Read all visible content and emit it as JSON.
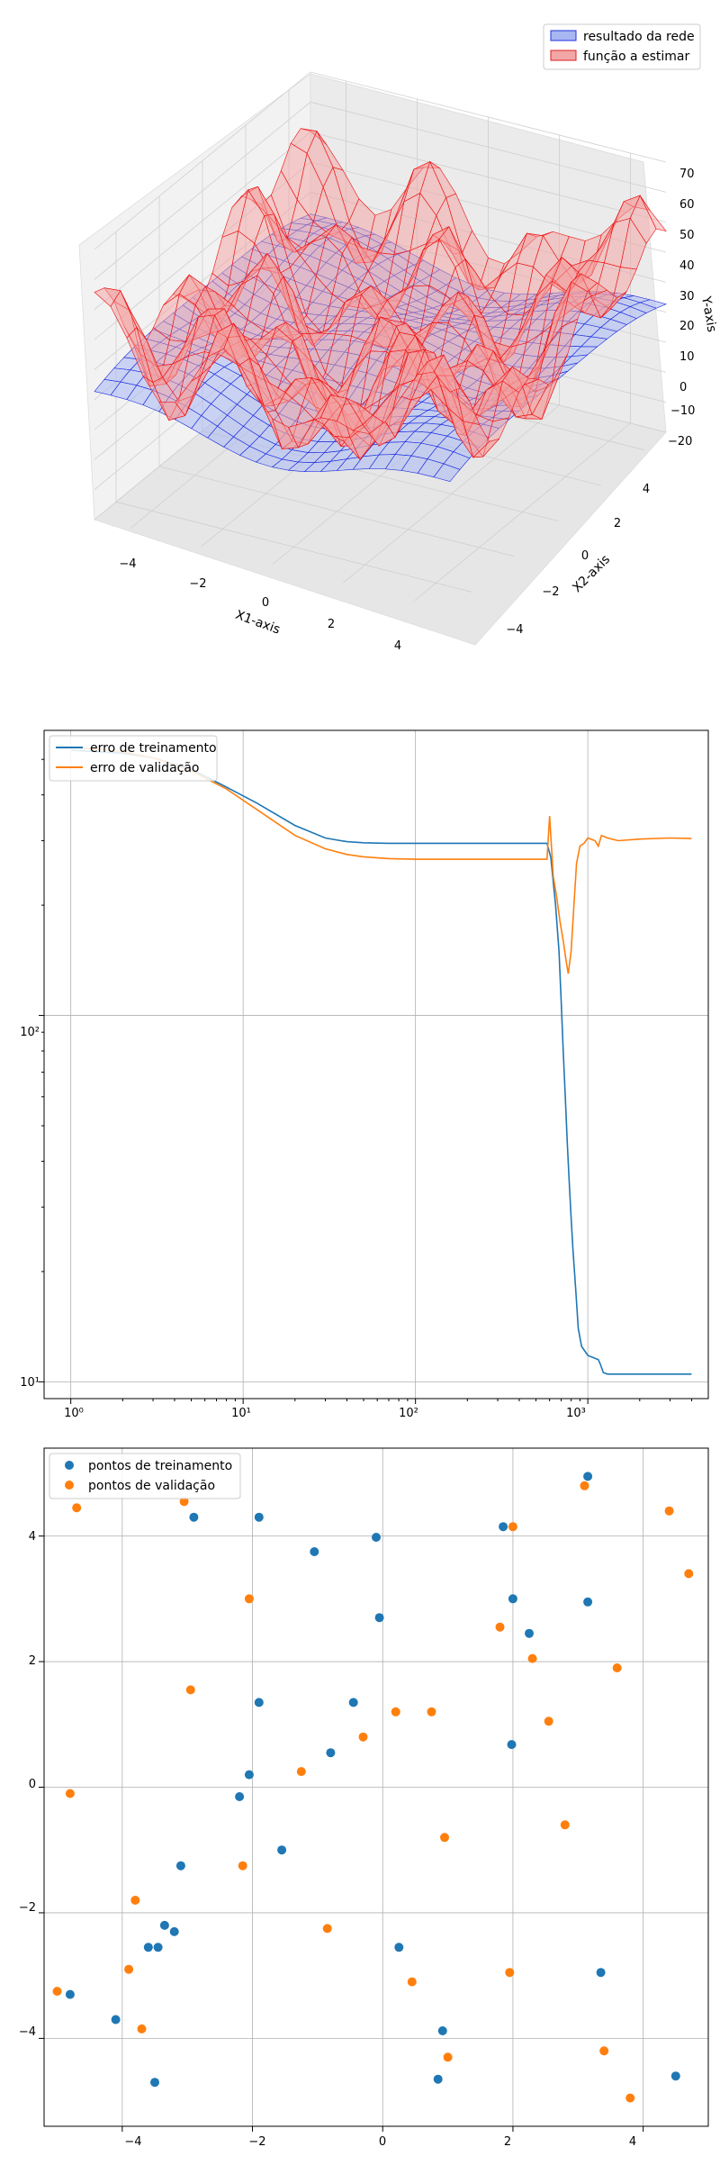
{
  "chart_data": [
    {
      "type": "surface3d",
      "legend": {
        "placement": "top-right",
        "entries": [
          {
            "label": "resultado da rede",
            "color": "#0000ff"
          },
          {
            "label": "função a estimar",
            "color": "#ff0000"
          }
        ]
      },
      "xlabel": "X1-axis",
      "ylabel": "X2-axis",
      "zlabel": "Y-axis",
      "xticks": [
        "−4",
        "−2",
        "0",
        "2",
        "4"
      ],
      "yticks": [
        "−4",
        "−2",
        "0",
        "2",
        "4"
      ],
      "zticks": [
        "70",
        "60",
        "50",
        "40",
        "30",
        "20",
        "10",
        "0",
        "−10",
        "−20"
      ],
      "xlim": [
        -5,
        5
      ],
      "ylim": [
        -5,
        5
      ],
      "zlim": [
        -20,
        70
      ],
      "grid": true
    },
    {
      "type": "line",
      "xscale": "log",
      "yscale": "log",
      "xlim": [
        0.7,
        5000
      ],
      "ylim": [
        9,
        600
      ],
      "grid": true,
      "legend": {
        "placement": "top-left"
      },
      "xticks": [
        "10⁰",
        "10¹",
        "10²",
        "10³"
      ],
      "yticks": [
        "10¹",
        "10²"
      ],
      "series": [
        {
          "name": "erro de treinamento",
          "color": "#1f77b4",
          "points": [
            [
              1,
              530
            ],
            [
              2,
              520
            ],
            [
              3,
              505
            ],
            [
              5,
              470
            ],
            [
              8,
              420
            ],
            [
              12,
              380
            ],
            [
              20,
              330
            ],
            [
              30,
              305
            ],
            [
              40,
              298
            ],
            [
              50,
              296
            ],
            [
              70,
              295
            ],
            [
              100,
              295
            ],
            [
              300,
              295
            ],
            [
              580,
              295
            ],
            [
              610,
              270
            ],
            [
              650,
              200
            ],
            [
              680,
              150
            ],
            [
              700,
              110
            ],
            [
              720,
              80
            ],
            [
              740,
              60
            ],
            [
              760,
              45
            ],
            [
              780,
              35
            ],
            [
              800,
              28
            ],
            [
              820,
              23
            ],
            [
              850,
              18
            ],
            [
              880,
              14
            ],
            [
              920,
              12.5
            ],
            [
              1000,
              11.8
            ],
            [
              1100,
              11.6
            ],
            [
              1150,
              11.5
            ],
            [
              1180,
              11.2
            ],
            [
              1230,
              10.6
            ],
            [
              1300,
              10.5
            ],
            [
              2000,
              10.5
            ],
            [
              3000,
              10.5
            ],
            [
              4000,
              10.5
            ]
          ]
        },
        {
          "name": "erro de validação",
          "color": "#ff7f0e",
          "points": [
            [
              1,
              540
            ],
            [
              2,
              525
            ],
            [
              3,
              505
            ],
            [
              5,
              465
            ],
            [
              8,
              415
            ],
            [
              12,
              365
            ],
            [
              20,
              310
            ],
            [
              30,
              285
            ],
            [
              40,
              275
            ],
            [
              50,
              271
            ],
            [
              70,
              268
            ],
            [
              100,
              267
            ],
            [
              300,
              267
            ],
            [
              580,
              267
            ],
            [
              600,
              350
            ],
            [
              630,
              240
            ],
            [
              660,
              210
            ],
            [
              690,
              180
            ],
            [
              720,
              160
            ],
            [
              750,
              140
            ],
            [
              770,
              130
            ],
            [
              800,
              150
            ],
            [
              830,
              200
            ],
            [
              860,
              260
            ],
            [
              900,
              290
            ],
            [
              950,
              295
            ],
            [
              1000,
              305
            ],
            [
              1100,
              300
            ],
            [
              1150,
              290
            ],
            [
              1200,
              310
            ],
            [
              1300,
              305
            ],
            [
              1500,
              300
            ],
            [
              2000,
              303
            ],
            [
              3000,
              305
            ],
            [
              4000,
              304
            ]
          ]
        }
      ]
    },
    {
      "type": "scatter",
      "xlim": [
        -5.2,
        5.0
      ],
      "ylim": [
        -5.4,
        5.4
      ],
      "grid": true,
      "legend": {
        "placement": "top-left"
      },
      "xticks": [
        "−4",
        "−2",
        "0",
        "2",
        "4"
      ],
      "yticks": [
        "−4",
        "−2",
        "0",
        "2",
        "4"
      ],
      "series": [
        {
          "name": "pontos de treinamento",
          "color": "#1f77b4",
          "points": [
            [
              -4.8,
              -3.3
            ],
            [
              -4.1,
              -3.7
            ],
            [
              -3.5,
              -4.7
            ],
            [
              -3.6,
              -2.55
            ],
            [
              -3.45,
              -2.55
            ],
            [
              -3.35,
              -2.2
            ],
            [
              -3.2,
              -2.3
            ],
            [
              -3.1,
              -1.25
            ],
            [
              -2.9,
              4.3
            ],
            [
              -2.2,
              -0.15
            ],
            [
              -2.05,
              0.2
            ],
            [
              -1.9,
              1.35
            ],
            [
              -1.9,
              4.3
            ],
            [
              -1.55,
              -1.0
            ],
            [
              -1.05,
              3.75
            ],
            [
              -0.8,
              0.55
            ],
            [
              -0.45,
              1.35
            ],
            [
              -0.1,
              3.98
            ],
            [
              -0.05,
              2.7
            ],
            [
              0.25,
              -2.55
            ],
            [
              0.85,
              -4.65
            ],
            [
              0.92,
              -3.88
            ],
            [
              1.85,
              4.15
            ],
            [
              2.0,
              3.0
            ],
            [
              1.98,
              0.68
            ],
            [
              2.25,
              2.45
            ],
            [
              3.15,
              2.95
            ],
            [
              3.15,
              4.95
            ],
            [
              3.35,
              -2.95
            ],
            [
              4.5,
              -4.6
            ]
          ]
        },
        {
          "name": "pontos de validação",
          "color": "#ff7f0e",
          "points": [
            [
              -5.0,
              -3.25
            ],
            [
              -4.8,
              -0.1
            ],
            [
              -4.7,
              4.45
            ],
            [
              -3.9,
              -2.9
            ],
            [
              -3.8,
              -1.8
            ],
            [
              -3.7,
              -3.85
            ],
            [
              -3.05,
              4.55
            ],
            [
              -2.95,
              1.55
            ],
            [
              -2.15,
              -1.25
            ],
            [
              -2.05,
              3.0
            ],
            [
              -1.25,
              0.25
            ],
            [
              -0.85,
              -2.25
            ],
            [
              -0.3,
              0.8
            ],
            [
              0.2,
              1.2
            ],
            [
              0.45,
              -3.1
            ],
            [
              0.75,
              1.2
            ],
            [
              0.95,
              -0.8
            ],
            [
              1.0,
              -4.3
            ],
            [
              1.8,
              2.55
            ],
            [
              1.95,
              -2.95
            ],
            [
              2.0,
              4.15
            ],
            [
              2.3,
              2.05
            ],
            [
              2.55,
              1.05
            ],
            [
              2.8,
              -0.6
            ],
            [
              3.1,
              4.8
            ],
            [
              3.4,
              -4.2
            ],
            [
              3.6,
              1.9
            ],
            [
              3.8,
              -4.95
            ],
            [
              4.4,
              4.4
            ],
            [
              4.7,
              3.4
            ]
          ]
        }
      ]
    }
  ]
}
